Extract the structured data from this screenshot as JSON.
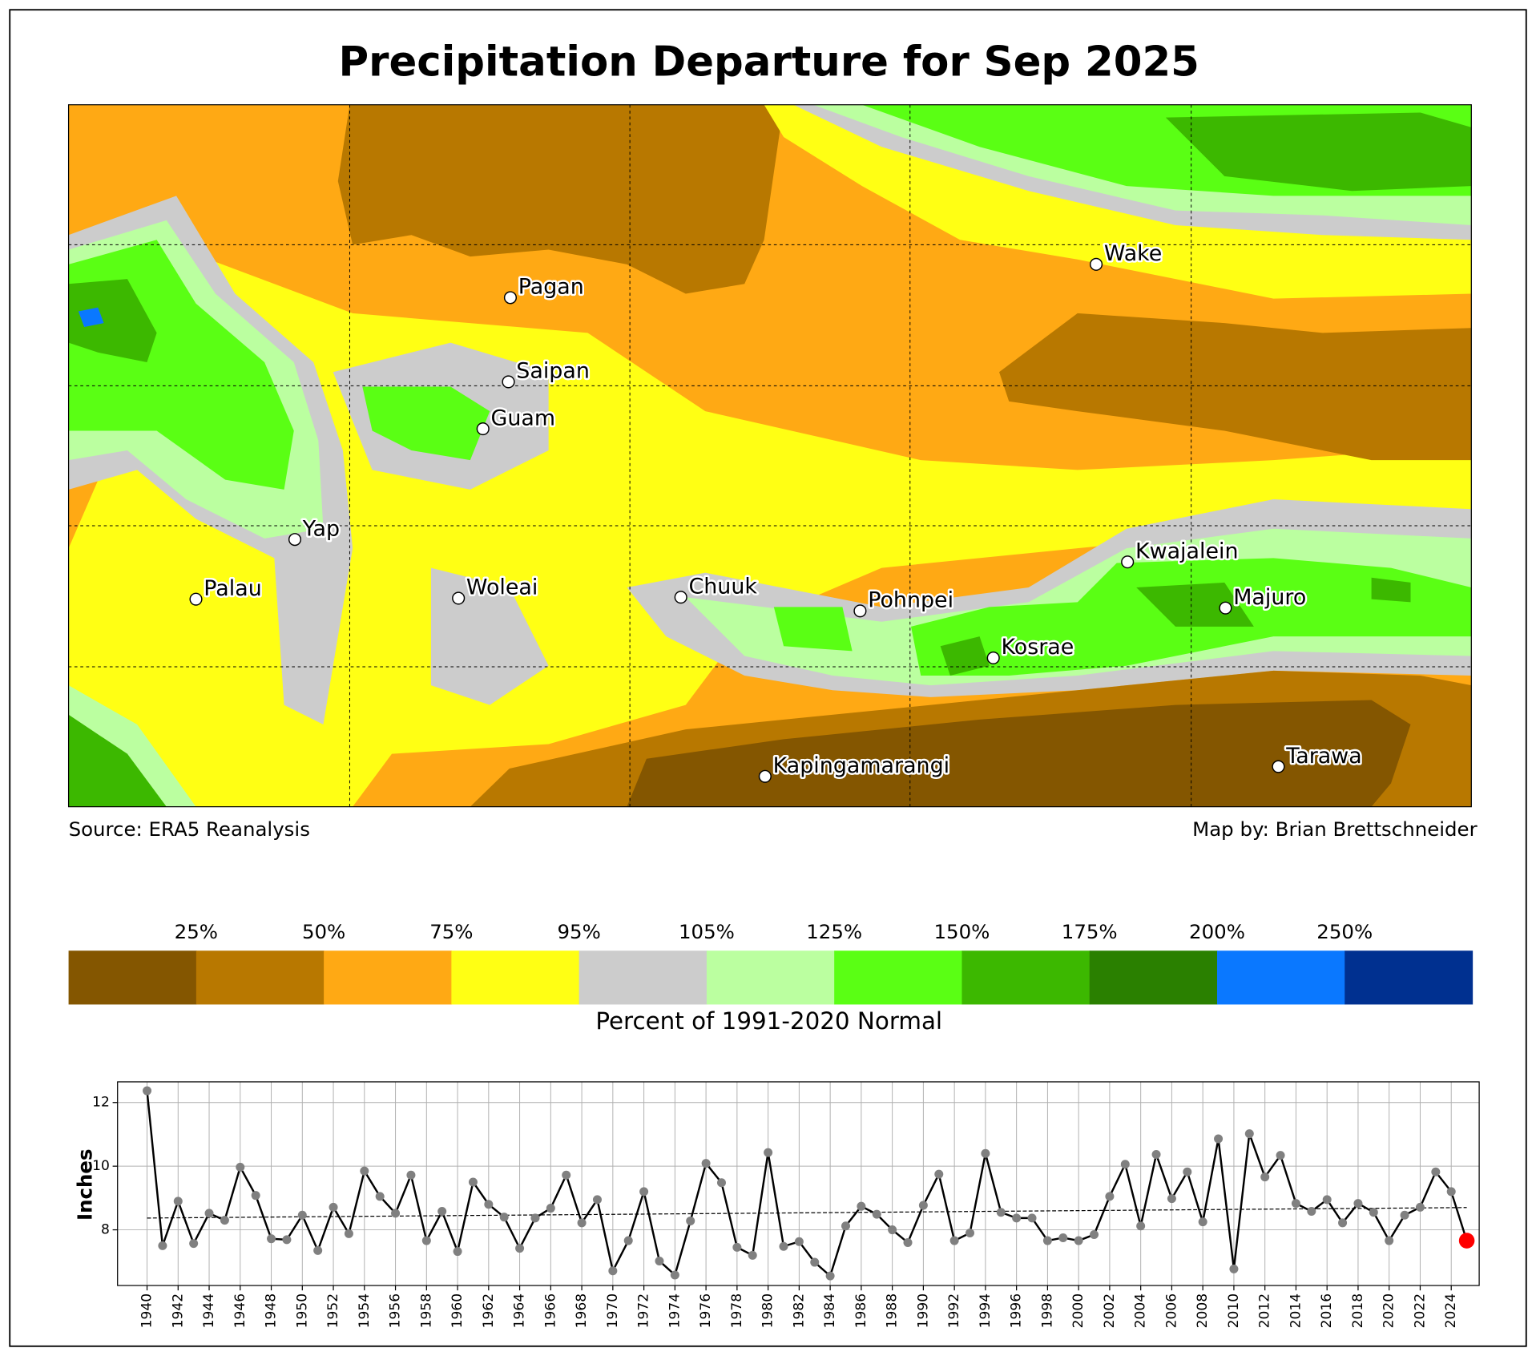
{
  "title": "Precipitation Departure for Sep 2025",
  "map": {
    "stations": [
      "Pagan",
      "Saipan",
      "Guam",
      "Wake",
      "Yap",
      "Palau",
      "Woleai",
      "Chuuk",
      "Pohnpei",
      "Kwajalein",
      "Majuro",
      "Kosrae",
      "Kapingamarangi",
      "Tarawa"
    ],
    "source": "Source: ERA5 Reanalysis",
    "credit": "Map by: Brian Brettschneider"
  },
  "colorbar": {
    "labels": [
      "25%",
      "50%",
      "75%",
      "95%",
      "105%",
      "125%",
      "150%",
      "175%",
      "200%",
      "250%"
    ],
    "colors": [
      "#845600",
      "#b87800",
      "#ffa914",
      "#ffff14",
      "#cccccc",
      "#bbffa0",
      "#5aff14",
      "#3cb800",
      "#2a8000",
      "#0a78ff",
      "#003090"
    ],
    "label": "Percent of 1991-2020 Normal"
  },
  "chart_data": {
    "type": "line",
    "ylabel": "Inches",
    "x": [
      1940,
      1941,
      1942,
      1943,
      1944,
      1945,
      1946,
      1947,
      1948,
      1949,
      1950,
      1951,
      1952,
      1953,
      1954,
      1955,
      1956,
      1957,
      1958,
      1959,
      1960,
      1961,
      1962,
      1963,
      1964,
      1965,
      1966,
      1967,
      1968,
      1969,
      1970,
      1971,
      1972,
      1973,
      1974,
      1975,
      1976,
      1977,
      1978,
      1979,
      1980,
      1981,
      1982,
      1983,
      1984,
      1985,
      1986,
      1987,
      1988,
      1989,
      1990,
      1991,
      1992,
      1993,
      1994,
      1995,
      1996,
      1997,
      1998,
      1999,
      2000,
      2001,
      2002,
      2003,
      2004,
      2005,
      2006,
      2007,
      2008,
      2009,
      2010,
      2011,
      2012,
      2013,
      2014,
      2015,
      2016,
      2017,
      2018,
      2019,
      2020,
      2021,
      2022,
      2023,
      2024,
      2025
    ],
    "values": [
      12.37,
      7.5,
      8.9,
      7.57,
      8.52,
      8.3,
      9.97,
      9.08,
      7.72,
      7.69,
      8.46,
      7.35,
      8.71,
      7.88,
      9.85,
      9.05,
      8.52,
      9.72,
      7.66,
      8.58,
      7.32,
      9.5,
      8.8,
      8.4,
      7.42,
      8.37,
      8.68,
      9.72,
      8.22,
      8.95,
      6.71,
      7.66,
      9.2,
      7.02,
      6.58,
      8.28,
      10.09,
      9.48,
      7.45,
      7.2,
      10.43,
      7.48,
      7.63,
      6.98,
      6.55,
      8.12,
      8.74,
      8.49,
      8.0,
      7.6,
      8.77,
      9.75,
      7.66,
      7.9,
      10.4,
      8.55,
      8.37,
      8.37,
      7.66,
      7.75,
      7.66,
      7.85,
      9.05,
      10.06,
      8.12,
      10.37,
      8.98,
      9.82,
      8.25,
      10.86,
      6.77,
      11.02,
      9.66,
      10.34,
      8.83,
      8.58,
      8.95,
      8.22,
      8.83,
      8.55,
      7.66,
      8.46,
      8.71,
      9.82,
      9.2,
      7.66
    ],
    "color": "#000000",
    "marker_color": "#808080",
    "highlight_color": "#ff0000",
    "trend": {
      "x": [
        1940,
        2025
      ],
      "values": [
        8.37,
        8.7
      ]
    },
    "xlim": [
      1938.1,
      2025.8
    ],
    "ylim": [
      6.25,
      12.65
    ],
    "xticks": [
      1940,
      1942,
      1944,
      1946,
      1948,
      1950,
      1952,
      1954,
      1956,
      1958,
      1960,
      1962,
      1964,
      1966,
      1968,
      1970,
      1972,
      1974,
      1976,
      1978,
      1980,
      1982,
      1984,
      1986,
      1988,
      1990,
      1992,
      1994,
      1996,
      1998,
      2000,
      2002,
      2004,
      2006,
      2008,
      2010,
      2012,
      2014,
      2016,
      2018,
      2020,
      2022,
      2024
    ],
    "yticks": [
      8,
      10,
      12
    ],
    "grid": true
  }
}
